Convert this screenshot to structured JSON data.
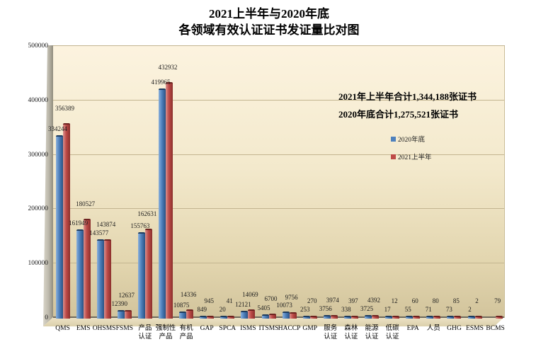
{
  "title": {
    "line1": "2021上半年与2020年底",
    "line2": "各领域有效认证证书发证量比对图"
  },
  "annotations": {
    "total_2021": "2021年上半年合计1,344,188张证书",
    "total_2020": "2020年底合计1,275,521张证书"
  },
  "legend": {
    "items": [
      {
        "label": "2020年底",
        "color": "#4F81BD"
      },
      {
        "label": "2021上半年",
        "color": "#BE4B48"
      }
    ]
  },
  "colors": {
    "series_2020": "#4F81BD",
    "series_2021": "#BE4B48",
    "plot_bg_top": "#FCF3DF",
    "plot_bg_bottom": "#D2C49C",
    "gridline": "#C3B590"
  },
  "chart_data": {
    "type": "bar",
    "categories": [
      "QMS",
      "EMS",
      "OHSMS",
      "FSMS",
      "产品\n认证",
      "强制性\n产品",
      "有机\n产品",
      "GAP",
      "SPCA",
      "ISMS",
      "ITSMS",
      "HACCP",
      "GMP",
      "服务\n认证",
      "森林\n认证",
      "能源\n认证",
      "低碳\n认证",
      "EPA",
      "人员",
      "GHG",
      "ESMS",
      "BCMS"
    ],
    "series": [
      {
        "name": "2020年底",
        "color": "#4F81BD",
        "values": [
          334244,
          161949,
          143577,
          12390,
          155763,
          419965,
          10875,
          849,
          20,
          12121,
          5405,
          10073,
          253,
          3756,
          338,
          3725,
          17,
          55,
          71,
          73,
          2,
          null
        ]
      },
      {
        "name": "2021上半年",
        "color": "#BE4B48",
        "values": [
          356389,
          180527,
          143874,
          12637,
          162631,
          432932,
          14336,
          945,
          41,
          14069,
          6700,
          9756,
          270,
          3974,
          397,
          4392,
          12,
          60,
          80,
          85,
          2,
          79
        ]
      }
    ],
    "title": "2021上半年与2020年底 各领域有效认证证书发证量比对图",
    "xlabel": "",
    "ylabel": "",
    "ylim": [
      0,
      500000
    ],
    "ytick_step": 100000,
    "yticks": [
      "0",
      "100000",
      "200000",
      "300000",
      "400000",
      "500000"
    ],
    "grid": true,
    "legend_position": "right-middle",
    "data_labels": true
  }
}
